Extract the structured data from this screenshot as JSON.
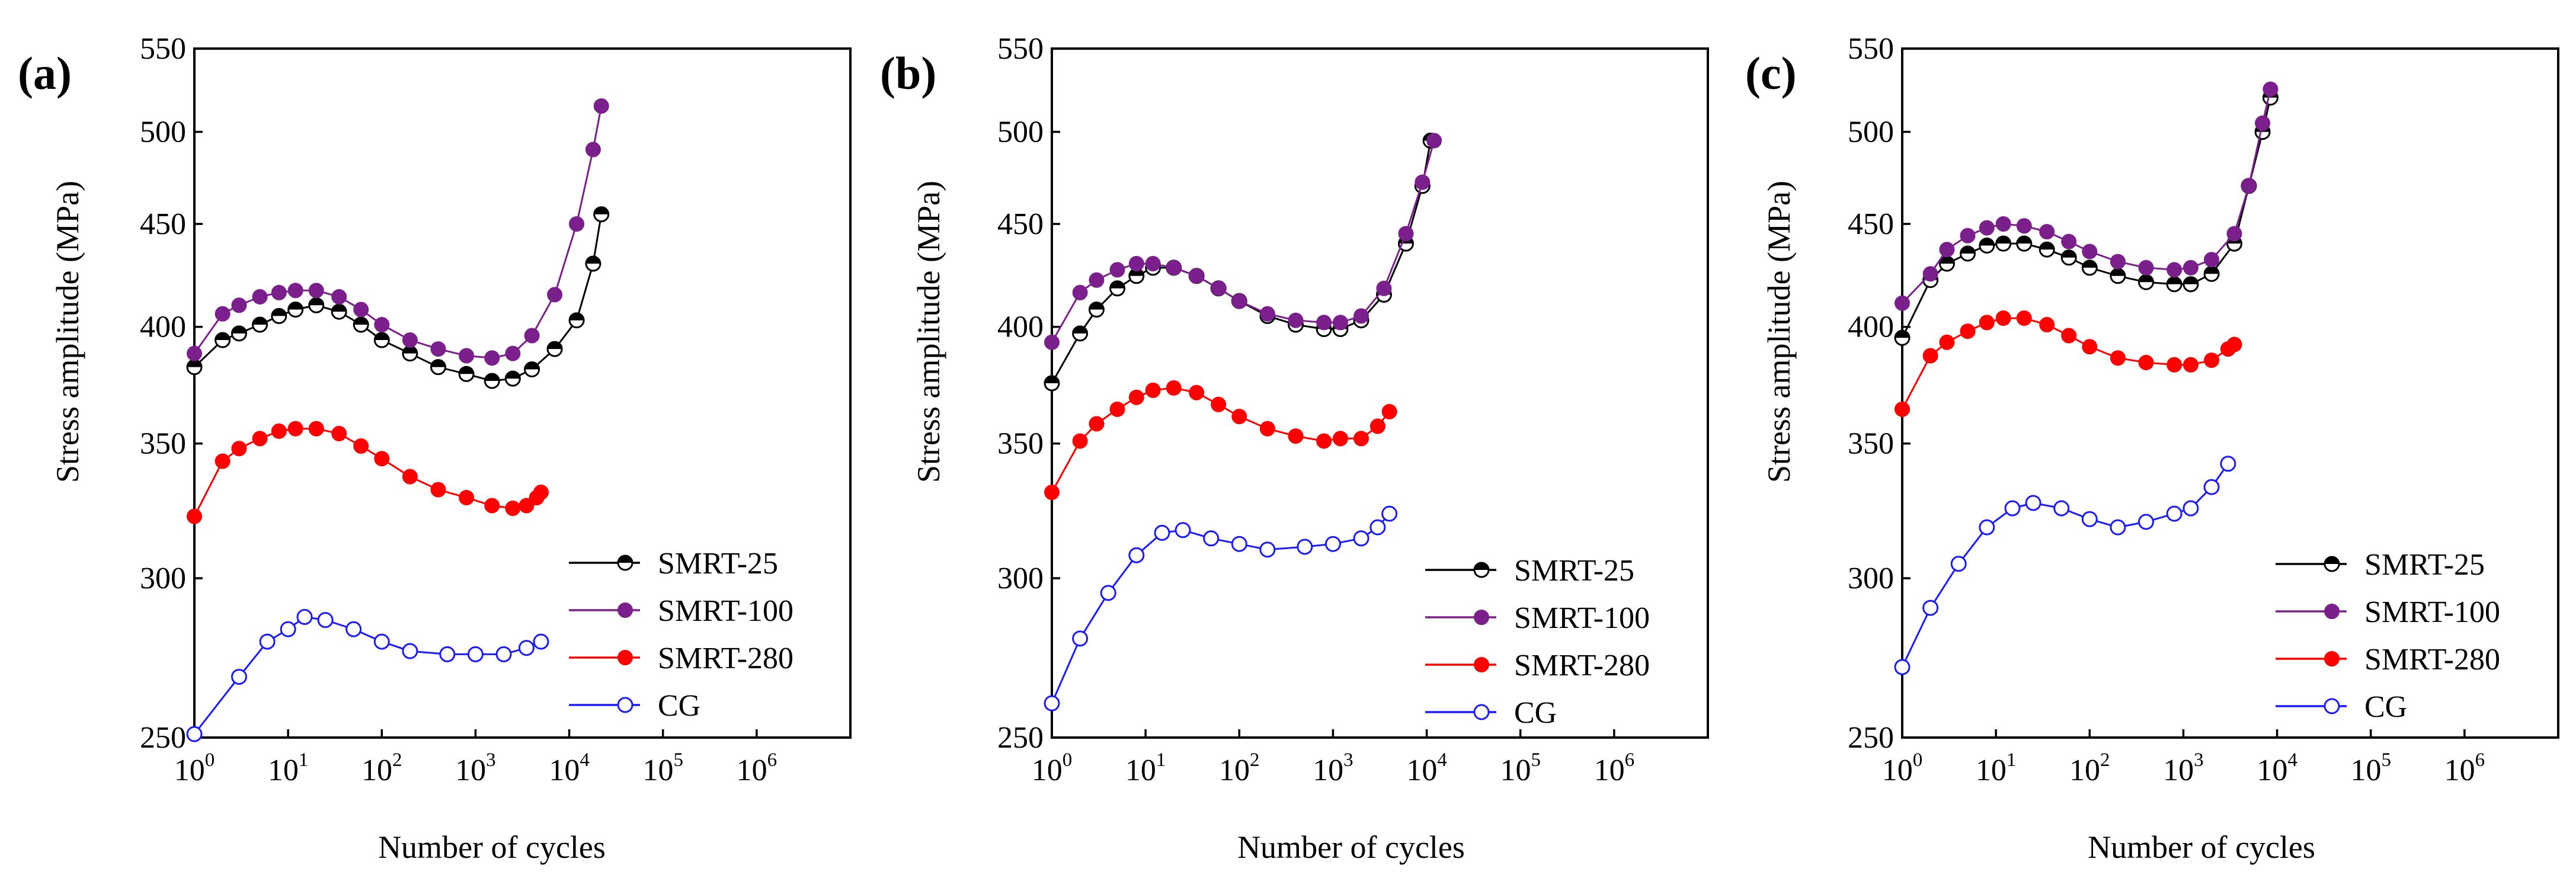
{
  "colors": {
    "SMRT-25": "#000000",
    "SMRT-100": "#7b1f8c",
    "SMRT-280": "#ff0000",
    "CG": "#1a1aff"
  },
  "chart_data": [
    {
      "type": "line",
      "panel": "(a)",
      "xlabel": "Number of cycles",
      "ylabel": "Stress amplitude (MPa)",
      "xscale": "log",
      "yscale": "log",
      "xlim": [
        1,
        10000000
      ],
      "ylim": [
        250,
        550
      ],
      "x_tick_labels": [
        "10^0",
        "10^1",
        "10^2",
        "10^3",
        "10^4",
        "10^5",
        "10^6"
      ],
      "y_ticks": [
        250,
        300,
        350,
        400,
        450,
        500,
        550
      ],
      "legend": [
        "SMRT-25",
        "SMRT-100",
        "SMRT-280",
        "CG"
      ],
      "legend_position": "bottom-right",
      "series": [
        {
          "name": "SMRT-25",
          "marker": "half-filled circle",
          "points": [
            [
              1,
              382
            ],
            [
              2,
              394
            ],
            [
              3,
              397
            ],
            [
              5,
              401
            ],
            [
              8,
              405
            ],
            [
              12,
              408
            ],
            [
              20,
              410
            ],
            [
              35,
              407
            ],
            [
              60,
              401
            ],
            [
              100,
              394
            ],
            [
              200,
              388
            ],
            [
              400,
              382
            ],
            [
              800,
              379
            ],
            [
              1500,
              376
            ],
            [
              2500,
              377
            ],
            [
              4000,
              381
            ],
            [
              7000,
              390
            ],
            [
              12000,
              403
            ],
            [
              18000,
              430
            ],
            [
              22000,
              455
            ]
          ]
        },
        {
          "name": "SMRT-100",
          "marker": "filled circle",
          "points": [
            [
              1,
              388
            ],
            [
              2,
              406
            ],
            [
              3,
              410
            ],
            [
              5,
              414
            ],
            [
              8,
              416
            ],
            [
              12,
              417
            ],
            [
              20,
              417
            ],
            [
              35,
              414
            ],
            [
              60,
              408
            ],
            [
              100,
              401
            ],
            [
              200,
              394
            ],
            [
              400,
              390
            ],
            [
              800,
              387
            ],
            [
              1500,
              386
            ],
            [
              2500,
              388
            ],
            [
              4000,
              396
            ],
            [
              7000,
              415
            ],
            [
              12000,
              450
            ],
            [
              18000,
              490
            ],
            [
              22000,
              515
            ]
          ]
        },
        {
          "name": "SMRT-280",
          "marker": "filled circle",
          "points": [
            [
              1,
              322
            ],
            [
              2,
              343
            ],
            [
              3,
              348
            ],
            [
              5,
              352
            ],
            [
              8,
              355
            ],
            [
              12,
              356
            ],
            [
              20,
              356
            ],
            [
              35,
              354
            ],
            [
              60,
              349
            ],
            [
              100,
              344
            ],
            [
              200,
              337
            ],
            [
              400,
              332
            ],
            [
              800,
              329
            ],
            [
              1500,
              326
            ],
            [
              2500,
              325
            ],
            [
              3500,
              326
            ],
            [
              4500,
              329
            ],
            [
              5000,
              331
            ]
          ]
        },
        {
          "name": "CG",
          "marker": "open circle",
          "points": [
            [
              1,
              251
            ],
            [
              3,
              268
            ],
            [
              6,
              279
            ],
            [
              10,
              283
            ],
            [
              15,
              287
            ],
            [
              25,
              286
            ],
            [
              50,
              283
            ],
            [
              100,
              279
            ],
            [
              200,
              276
            ],
            [
              500,
              275
            ],
            [
              1000,
              275
            ],
            [
              2000,
              275
            ],
            [
              3500,
              277
            ],
            [
              5000,
              279
            ]
          ]
        }
      ]
    },
    {
      "type": "line",
      "panel": "(b)",
      "xlabel": "Number of cycles",
      "ylabel": "Stress amplitude (MPa)",
      "xscale": "log",
      "yscale": "log",
      "xlim": [
        1,
        10000000
      ],
      "ylim": [
        250,
        550
      ],
      "x_tick_labels": [
        "10^0",
        "10^1",
        "10^2",
        "10^3",
        "10^4",
        "10^5",
        "10^6"
      ],
      "y_ticks": [
        250,
        300,
        350,
        400,
        450,
        500,
        550
      ],
      "legend": [
        "SMRT-25",
        "SMRT-100",
        "SMRT-280",
        "CG"
      ],
      "legend_position": "bottom-right",
      "series": [
        {
          "name": "SMRT-25",
          "marker": "half-filled circle",
          "points": [
            [
              1,
              375
            ],
            [
              2,
              397
            ],
            [
              3,
              408
            ],
            [
              5,
              418
            ],
            [
              8,
              424
            ],
            [
              12,
              428
            ],
            [
              20,
              428
            ],
            [
              35,
              424
            ],
            [
              60,
              418
            ],
            [
              100,
              412
            ],
            [
              200,
              405
            ],
            [
              400,
              401
            ],
            [
              800,
              399
            ],
            [
              1200,
              399
            ],
            [
              2000,
              403
            ],
            [
              3500,
              415
            ],
            [
              6000,
              440
            ],
            [
              9000,
              470
            ],
            [
              11000,
              495
            ]
          ]
        },
        {
          "name": "SMRT-100",
          "marker": "filled circle",
          "points": [
            [
              1,
              393
            ],
            [
              2,
              416
            ],
            [
              3,
              422
            ],
            [
              5,
              427
            ],
            [
              8,
              430
            ],
            [
              12,
              430
            ],
            [
              20,
              428
            ],
            [
              35,
              424
            ],
            [
              60,
              418
            ],
            [
              100,
              412
            ],
            [
              200,
              406
            ],
            [
              400,
              403
            ],
            [
              800,
              402
            ],
            [
              1200,
              402
            ],
            [
              2000,
              405
            ],
            [
              3500,
              418
            ],
            [
              6000,
              445
            ],
            [
              9000,
              472
            ],
            [
              12000,
              495
            ]
          ]
        },
        {
          "name": "SMRT-280",
          "marker": "filled circle",
          "points": [
            [
              1,
              331
            ],
            [
              2,
              351
            ],
            [
              3,
              358
            ],
            [
              5,
              364
            ],
            [
              8,
              369
            ],
            [
              12,
              372
            ],
            [
              20,
              373
            ],
            [
              35,
              371
            ],
            [
              60,
              366
            ],
            [
              100,
              361
            ],
            [
              200,
              356
            ],
            [
              400,
              353
            ],
            [
              800,
              351
            ],
            [
              1200,
              352
            ],
            [
              2000,
              352
            ],
            [
              3000,
              357
            ],
            [
              4000,
              363
            ]
          ]
        },
        {
          "name": "CG",
          "marker": "open circle",
          "points": [
            [
              1,
              260
            ],
            [
              2,
              280
            ],
            [
              4,
              295
            ],
            [
              8,
              308
            ],
            [
              15,
              316
            ],
            [
              25,
              317
            ],
            [
              50,
              314
            ],
            [
              100,
              312
            ],
            [
              200,
              310
            ],
            [
              500,
              311
            ],
            [
              1000,
              312
            ],
            [
              2000,
              314
            ],
            [
              3000,
              318
            ],
            [
              4000,
              323
            ]
          ]
        }
      ]
    },
    {
      "type": "line",
      "panel": "(c)",
      "xlabel": "Number of cycles",
      "ylabel": "Stress amplitude (MPa)",
      "xscale": "log",
      "yscale": "log",
      "xlim": [
        1,
        10000000
      ],
      "ylim": [
        250,
        550
      ],
      "x_tick_labels": [
        "10^0",
        "10^1",
        "10^2",
        "10^3",
        "10^4",
        "10^5",
        "10^6"
      ],
      "y_ticks": [
        250,
        300,
        350,
        400,
        450,
        500,
        550
      ],
      "legend": [
        "SMRT-25",
        "SMRT-100",
        "SMRT-280",
        "CG"
      ],
      "legend_position": "bottom-right",
      "series": [
        {
          "name": "SMRT-25",
          "marker": "half-filled circle",
          "points": [
            [
              1,
              395
            ],
            [
              2,
              422
            ],
            [
              3,
              430
            ],
            [
              5,
              435
            ],
            [
              8,
              439
            ],
            [
              12,
              440
            ],
            [
              20,
              440
            ],
            [
              35,
              437
            ],
            [
              60,
              433
            ],
            [
              100,
              428
            ],
            [
              200,
              424
            ],
            [
              400,
              421
            ],
            [
              800,
              420
            ],
            [
              1200,
              420
            ],
            [
              2000,
              425
            ],
            [
              3500,
              440
            ],
            [
              5000,
              470
            ],
            [
              7000,
              500
            ],
            [
              8500,
              520
            ]
          ]
        },
        {
          "name": "SMRT-100",
          "marker": "filled circle",
          "points": [
            [
              1,
              411
            ],
            [
              2,
              425
            ],
            [
              3,
              437
            ],
            [
              5,
              444
            ],
            [
              8,
              448
            ],
            [
              12,
              450
            ],
            [
              20,
              449
            ],
            [
              35,
              446
            ],
            [
              60,
              441
            ],
            [
              100,
              436
            ],
            [
              200,
              431
            ],
            [
              400,
              428
            ],
            [
              800,
              427
            ],
            [
              1200,
              428
            ],
            [
              2000,
              432
            ],
            [
              3500,
              445
            ],
            [
              5000,
              470
            ],
            [
              7000,
              505
            ],
            [
              8500,
              525
            ]
          ]
        },
        {
          "name": "SMRT-280",
          "marker": "filled circle",
          "points": [
            [
              1,
              364
            ],
            [
              2,
              387
            ],
            [
              3,
              393
            ],
            [
              5,
              398
            ],
            [
              8,
              402
            ],
            [
              12,
              404
            ],
            [
              20,
              404
            ],
            [
              35,
              401
            ],
            [
              60,
              396
            ],
            [
              100,
              391
            ],
            [
              200,
              386
            ],
            [
              400,
              384
            ],
            [
              800,
              383
            ],
            [
              1200,
              383
            ],
            [
              2000,
              385
            ],
            [
              3000,
              390
            ],
            [
              3500,
              392
            ]
          ]
        },
        {
          "name": "CG",
          "marker": "open circle",
          "points": [
            [
              1,
              271
            ],
            [
              2,
              290
            ],
            [
              4,
              305
            ],
            [
              8,
              318
            ],
            [
              15,
              325
            ],
            [
              25,
              327
            ],
            [
              50,
              325
            ],
            [
              100,
              321
            ],
            [
              200,
              318
            ],
            [
              400,
              320
            ],
            [
              800,
              323
            ],
            [
              1200,
              325
            ],
            [
              2000,
              333
            ],
            [
              3000,
              342
            ]
          ]
        }
      ]
    }
  ]
}
